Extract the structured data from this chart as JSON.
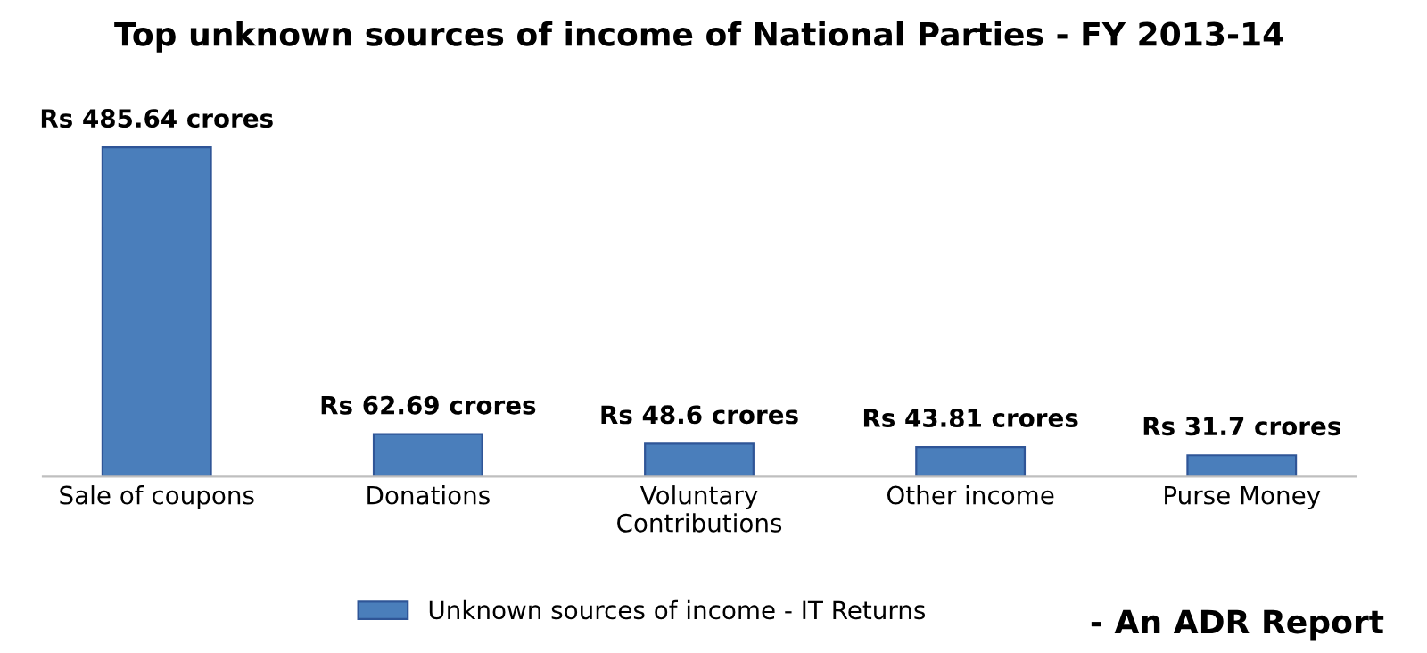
{
  "chart_data": {
    "type": "bar",
    "title": "Top unknown sources of income of National Parties - FY 2013-14",
    "categories": [
      "Sale of coupons",
      "Donations",
      "Voluntary\nContributions",
      "Other income",
      "Purse Money"
    ],
    "series": [
      {
        "name": "Unknown sources of income - IT Returns",
        "color": "#4a7ebb",
        "values": [
          485.64,
          62.69,
          48.6,
          43.81,
          31.7
        ],
        "value_labels": [
          "Rs 485.64 crores",
          "Rs 62.69 crores",
          "Rs 48.6 crores",
          "Rs 43.81 crores",
          "Rs 31.7 crores"
        ]
      }
    ],
    "legend": "bottom",
    "tick_labels": "x",
    "annotations": [
      "- An ADR Report"
    ]
  }
}
